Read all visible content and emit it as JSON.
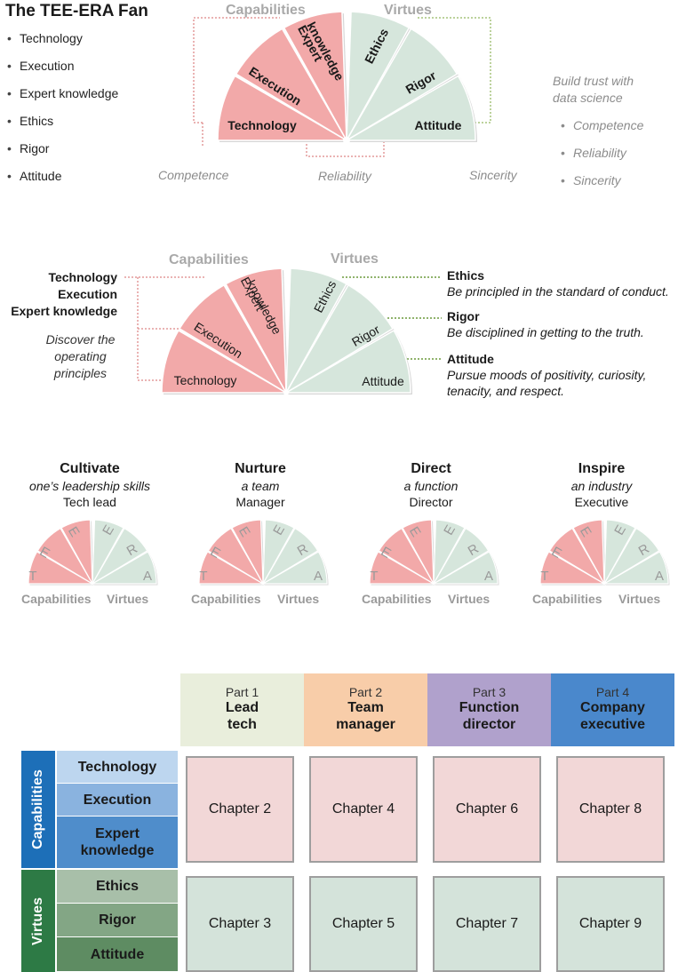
{
  "title": "The TEE-ERA Fan",
  "bullets": [
    "Technology",
    "Execution",
    "Expert knowledge",
    "Ethics",
    "Rigor",
    "Attitude"
  ],
  "fan1": {
    "capabilities": "Capabilities",
    "virtues": "Virtues",
    "blades": {
      "technology": "Technology",
      "execution": "Execution",
      "expert1": "Expert",
      "expert2": "knowledge",
      "ethics": "Ethics",
      "rigor": "Rigor",
      "attitude": "Attitude"
    },
    "competence": "Competence",
    "reliability": "Reliability",
    "sincerity": "Sincerity"
  },
  "trust": {
    "line1": "Build trust with",
    "line2": "data science",
    "items": [
      "Competence",
      "Reliability",
      "Sincerity"
    ]
  },
  "fan2": {
    "capabilities": "Capabilities",
    "virtues": "Virtues",
    "blades": {
      "technology": "Technology",
      "execution": "Execution",
      "expert1": "Expert",
      "expert2": "knowledge",
      "ethics": "Ethics",
      "rigor": "Rigor",
      "attitude": "Attitude"
    },
    "left_labels": [
      "Technology",
      "Execution",
      "Expert knowledge"
    ],
    "discover": [
      "Discover the",
      "operating",
      "principles"
    ],
    "right": [
      {
        "title": "Ethics",
        "desc": [
          "Be principled in the standard of conduct."
        ]
      },
      {
        "title": "Rigor",
        "desc": [
          "Be disciplined in getting to the truth."
        ]
      },
      {
        "title": "Attitude",
        "desc": [
          "Pursue moods of positivity, curiosity,",
          "tenacity, and respect."
        ]
      }
    ]
  },
  "levels": [
    {
      "head": "Cultivate",
      "sub": "one’s leadership skills",
      "role": "Tech lead"
    },
    {
      "head": "Nurture",
      "sub": "a team",
      "role": "Manager"
    },
    {
      "head": "Direct",
      "sub": "a function",
      "role": "Director"
    },
    {
      "head": "Inspire",
      "sub": "an industry",
      "role": "Executive"
    }
  ],
  "mini": {
    "letters": [
      "T",
      "E",
      "E",
      "R",
      "A"
    ],
    "capabilities": "Capabilities",
    "virtues": "Virtues"
  },
  "table": {
    "parts": [
      {
        "num": "Part 1",
        "l1": "Lead",
        "l2": "tech",
        "color": "#e9eedc"
      },
      {
        "num": "Part 2",
        "l1": "Team",
        "l2": "manager",
        "color": "#f8cda9"
      },
      {
        "num": "Part 3",
        "l1": "Function",
        "l2": "director",
        "color": "#b0a1cc"
      },
      {
        "num": "Part 4",
        "l1": "Company",
        "l2": "executive",
        "color": "#4a88cc"
      }
    ],
    "side_cap": "Capabilities",
    "side_virt": "Virtues",
    "rows_cap": [
      "Technology",
      "Execution",
      "Expert knowledge"
    ],
    "rows_virt": [
      "Ethics",
      "Rigor",
      "Attitude"
    ],
    "chapters_cap": [
      "Chapter 2",
      "Chapter 4",
      "Chapter 6",
      "Chapter 8"
    ],
    "chapters_virt": [
      "Chapter 3",
      "Chapter 5",
      "Chapter 7",
      "Chapter 9"
    ],
    "colors": {
      "cap_side": "#1d6fb8",
      "virt_side": "#2d7a45",
      "cap_rows": [
        "#bdd6ef",
        "#8ab3df",
        "#4f8dcb"
      ],
      "virt_rows": [
        "#a8bfa9",
        "#83a685",
        "#5e8c62"
      ],
      "cap_cell": "#f2d7d7",
      "virt_cell": "#d4e3da"
    }
  }
}
